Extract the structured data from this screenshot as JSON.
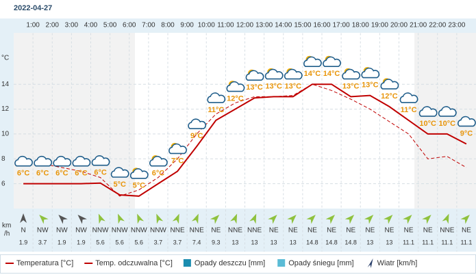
{
  "chart_data": {
    "type": "line",
    "title": "2022-04-27",
    "y_unit": "°C",
    "wind_unit_lines": [
      "km",
      "/h"
    ],
    "hour_labels": [
      "1:00",
      "2:00",
      "3:00",
      "4:00",
      "5:00",
      "6:00",
      "7:00",
      "8:00",
      "9:00",
      "10:00",
      "11:00",
      "12:00",
      "13:00",
      "14:00",
      "15:00",
      "16:00",
      "17:00",
      "18:00",
      "19:00",
      "20:00",
      "21:00",
      "22:00",
      "23:00"
    ],
    "ylim": [
      4,
      18
    ],
    "yticks": [
      6,
      8,
      10,
      12,
      14
    ],
    "grid": true,
    "series": [
      {
        "name": "Temperatura [°C]",
        "color": "#c00000",
        "dash": false,
        "values": [
          6,
          6,
          6,
          6,
          6.05,
          5.1,
          5,
          6,
          7,
          9,
          11.1,
          12,
          12.9,
          13,
          13,
          14,
          14,
          13,
          13.1,
          12.2,
          11.1,
          10,
          10,
          9.2
        ],
        "value_labels": [
          "6°C",
          "6°C",
          "6°C",
          "6°C",
          "6°C",
          "5°C",
          "5°C",
          "6°C",
          "7°C",
          "9°C",
          "11°C",
          "12°C",
          "13°C",
          "13°C",
          "13°C",
          "14°C",
          "14°C",
          "13°C",
          "13°C",
          "12°C",
          "11°C",
          "10°C",
          "10°C",
          "9°C"
        ]
      },
      {
        "name": "Temp. odczuwalna [°C]",
        "color": "#c00000",
        "dash": true,
        "values": [
          7.9,
          7.6,
          7.3,
          7,
          6.5,
          5,
          5.5,
          6.5,
          8,
          10,
          11.6,
          12.5,
          13,
          13,
          13.1,
          14,
          13.5,
          12.8,
          12,
          11,
          10,
          8,
          8.2,
          7.3
        ]
      }
    ],
    "legend_extra": [
      {
        "name": "Opady deszczu [mm]",
        "color": "#1b8db0"
      },
      {
        "name": "Opady śniegu [mm]",
        "color": "#5bbcd6"
      },
      {
        "name": "Wiatr [km/h]",
        "color": "#2a3f6a"
      }
    ],
    "wind": {
      "directions": [
        "N",
        "NW",
        "NW",
        "NW",
        "NNW",
        "NNW",
        "NNW",
        "NNW",
        "NNE",
        "NNE",
        "NE",
        "NNE",
        "NNE",
        "NE",
        "NE",
        "NE",
        "NE",
        "NE",
        "NE",
        "NE",
        "NE",
        "NE",
        "NNE",
        "NE"
      ],
      "speeds": [
        1.9,
        3.7,
        1.9,
        1.9,
        5.6,
        5.6,
        5.6,
        3.7,
        3.7,
        7.4,
        9.3,
        13,
        13,
        13,
        13,
        14.8,
        14.8,
        14.8,
        13,
        13,
        11.1,
        11.1,
        11.1,
        11.1
      ]
    }
  }
}
